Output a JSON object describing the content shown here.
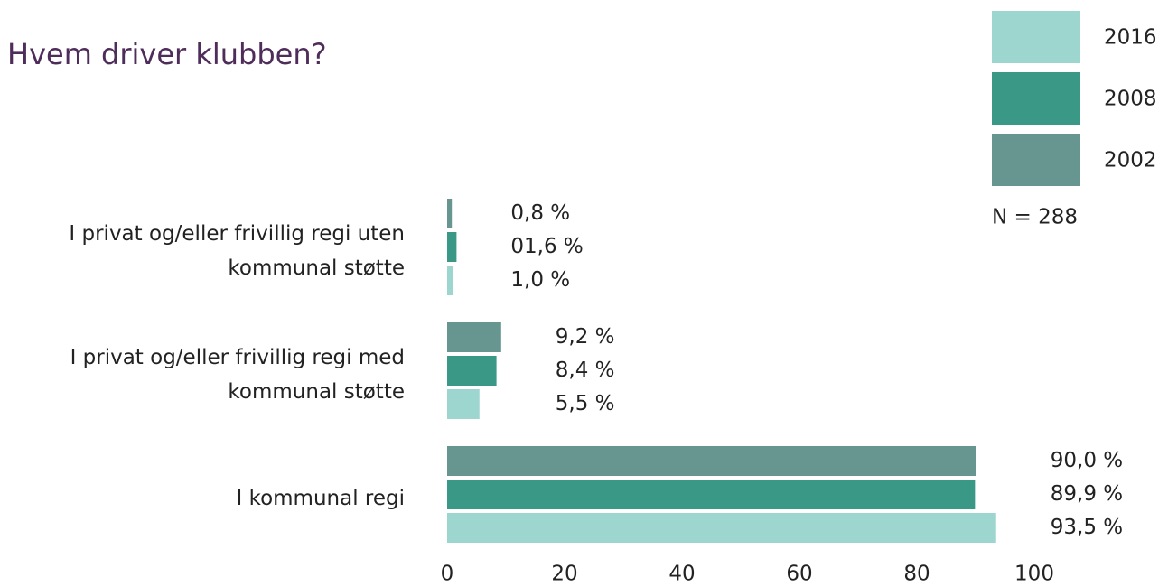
{
  "chart_data": {
    "type": "bar",
    "orientation": "horizontal",
    "title": "Hvem driver klubben?",
    "note": "N = 288",
    "categories": [
      "I privat og/eller frivillig regi uten\nkommunal støtte",
      "I privat og/eller frivillig regi med\nkommunal støtte",
      "I kommunal regi"
    ],
    "series": [
      {
        "name": "2016",
        "color": "#9dd6cf",
        "values": [
          1.0,
          5.5,
          93.5
        ],
        "value_labels": [
          "1,0 %",
          "5,5 %",
          "93,5 %"
        ]
      },
      {
        "name": "2008",
        "color": "#3a9887",
        "values": [
          1.6,
          8.4,
          89.9
        ],
        "value_labels": [
          "01,6 %",
          "8,4 %",
          "89,9 %"
        ]
      },
      {
        "name": "2002",
        "color": "#66968f",
        "values": [
          0.8,
          9.2,
          90.0
        ],
        "value_labels": [
          "0,8 %",
          "9,2 %",
          "90,0 %"
        ]
      }
    ],
    "xlim": [
      0,
      100
    ],
    "xticks": [
      0,
      20,
      40,
      60,
      80,
      100
    ],
    "grid": false
  }
}
